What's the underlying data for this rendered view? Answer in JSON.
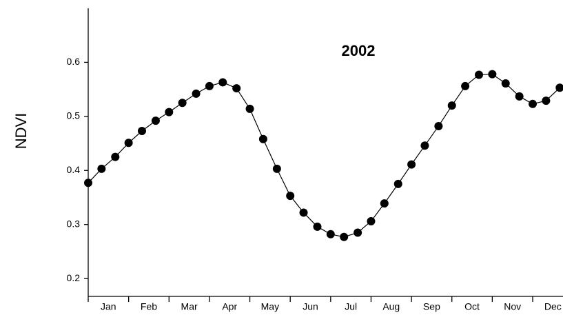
{
  "chart_data": {
    "type": "line",
    "title": "2002",
    "ylabel": "NDVI",
    "categories": [
      "Jan",
      "Feb",
      "Mar",
      "Apr",
      "May",
      "Jun",
      "Jul",
      "Aug",
      "Sep",
      "Oct",
      "Nov",
      "Dec"
    ],
    "x": [
      0,
      0.33,
      0.67,
      1,
      1.33,
      1.67,
      2,
      2.33,
      2.67,
      3,
      3.33,
      3.67,
      4,
      4.33,
      4.67,
      5,
      5.33,
      5.67,
      6,
      6.33,
      6.67,
      7,
      7.33,
      7.67,
      8,
      8.33,
      8.67,
      9,
      9.33,
      9.67,
      10,
      10.33,
      10.67,
      11,
      11.33,
      11.67
    ],
    "series": [
      {
        "name": "NDVI",
        "color": "#000000",
        "values": [
          0.377,
          0.403,
          0.425,
          0.451,
          0.473,
          0.492,
          0.508,
          0.525,
          0.542,
          0.556,
          0.563,
          0.552,
          0.514,
          0.458,
          0.403,
          0.353,
          0.322,
          0.296,
          0.282,
          0.277,
          0.285,
          0.306,
          0.339,
          0.375,
          0.411,
          0.446,
          0.482,
          0.52,
          0.556,
          0.577,
          0.578,
          0.561,
          0.537,
          0.523,
          0.529,
          0.553
        ]
      }
    ],
    "xlim": [
      0,
      11.75
    ],
    "xticks": [
      0,
      1,
      2,
      3,
      4,
      5,
      6,
      7,
      8,
      9,
      10,
      11
    ],
    "ylim": [
      0.167,
      0.7
    ],
    "yticks": [
      {
        "value": 0.2,
        "label": "0.2"
      },
      {
        "value": 0.3,
        "label": "0.3"
      },
      {
        "value": 0.4,
        "label": "0.4"
      },
      {
        "value": 0.5,
        "label": "0.5"
      },
      {
        "value": 0.6,
        "label": "0.6"
      }
    ],
    "grid": false
  }
}
